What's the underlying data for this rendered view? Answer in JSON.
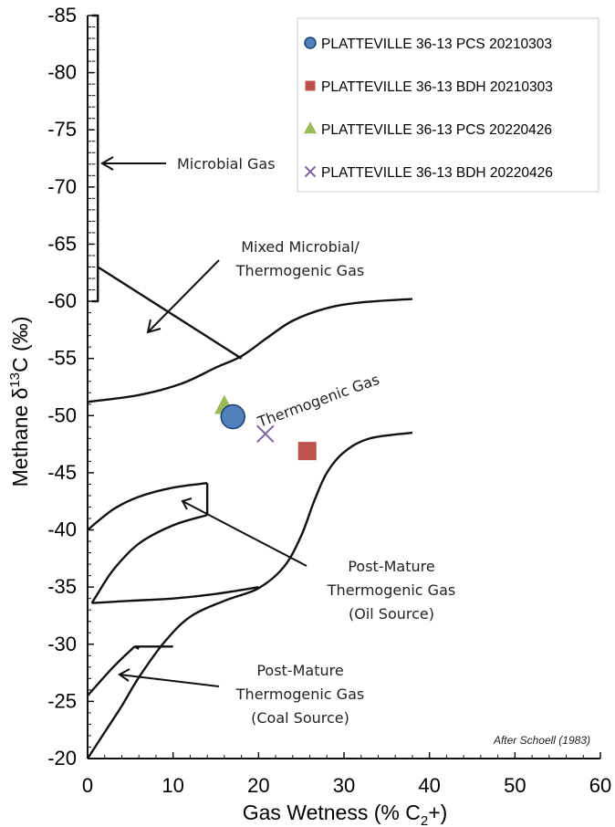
{
  "chart_data": {
    "type": "scatter",
    "xlabel": "Gas Wetness (% C",
    "xlabel_sub": "2",
    "xlabel_end": "+)",
    "ylabel_pre": "Methane  δ",
    "ylabel_sup": "13",
    "ylabel_post": "C (‰)",
    "xlim": [
      0,
      60
    ],
    "ylim": [
      -20,
      -85
    ],
    "x_ticks": [
      "0",
      "10",
      "20",
      "30",
      "40",
      "50",
      "60"
    ],
    "y_ticks": [
      "-20",
      "-25",
      "-30",
      "-35",
      "-40",
      "-45",
      "-50",
      "-55",
      "-60",
      "-65",
      "-70",
      "-75",
      "-80",
      "-85"
    ],
    "grid": false,
    "legend_position": "top-right",
    "series": [
      {
        "name": "PLATTEVILLE 36-13 PCS 20210303",
        "marker": "circle",
        "color": "#4f81bd",
        "points": [
          {
            "x": 17.0,
            "y": -49.9
          }
        ]
      },
      {
        "name": "PLATTEVILLE 36-13 BDH 20210303",
        "marker": "square",
        "color": "#c0504d",
        "points": [
          {
            "x": 25.7,
            "y": -46.9
          }
        ]
      },
      {
        "name": "PLATTEVILLE 36-13 PCS 20220426",
        "marker": "triangle",
        "color": "#9bbb59",
        "points": [
          {
            "x": 16.0,
            "y": -50.8
          }
        ]
      },
      {
        "name": "PLATTEVILLE 36-13 BDH 20220426",
        "marker": "x",
        "color": "#8064a2",
        "points": [
          {
            "x": 20.8,
            "y": -48.4
          }
        ]
      }
    ],
    "boundaries": [
      {
        "name": "microbial-box",
        "points": [
          [
            0.5,
            -60
          ],
          [
            1.2,
            -60
          ],
          [
            1.2,
            -85
          ],
          [
            0.5,
            -85
          ]
        ]
      },
      {
        "name": "mixed-zone-diagonal",
        "points": [
          [
            1.2,
            -63
          ],
          [
            18,
            -55
          ]
        ]
      },
      {
        "name": "thermogenic-upper-curve",
        "points": [
          [
            0,
            -51.2
          ],
          [
            6,
            -51.8
          ],
          [
            11,
            -52.8
          ],
          [
            15,
            -54.2
          ],
          [
            18,
            -55.2
          ],
          [
            21,
            -56.8
          ],
          [
            24,
            -58.3
          ],
          [
            28,
            -59.4
          ],
          [
            32,
            -59.9
          ],
          [
            38,
            -60.2
          ]
        ]
      },
      {
        "name": "thermogenic-lower-curve",
        "points": [
          [
            0,
            -20
          ],
          [
            2,
            -22.3
          ],
          [
            4,
            -24.6
          ],
          [
            6,
            -27.1
          ],
          [
            9,
            -30.2
          ],
          [
            12,
            -32.4
          ],
          [
            16,
            -33.8
          ],
          [
            20,
            -34.9
          ],
          [
            23,
            -36.8
          ],
          [
            25,
            -39.5
          ],
          [
            26.5,
            -42.5
          ],
          [
            28,
            -45
          ],
          [
            30,
            -46.8
          ],
          [
            33,
            -48
          ],
          [
            38,
            -48.5
          ]
        ]
      },
      {
        "name": "oil-source-box",
        "points": [
          [
            0,
            -40
          ],
          [
            3,
            -41.8
          ],
          [
            6,
            -42.9
          ],
          [
            10,
            -43.7
          ],
          [
            14,
            -44.1
          ],
          [
            14,
            -41.3
          ],
          [
            10,
            -40.4
          ],
          [
            6,
            -38.8
          ],
          [
            3,
            -36.5
          ],
          [
            1,
            -34.2
          ],
          [
            0.5,
            -33.6
          ],
          [
            5,
            -33.8
          ],
          [
            10,
            -34
          ],
          [
            15,
            -34.4
          ],
          [
            20,
            -35
          ]
        ]
      },
      {
        "name": "coal-source-box",
        "points": [
          [
            0,
            -25.5
          ],
          [
            3,
            -28
          ],
          [
            5.5,
            -29.8
          ],
          [
            10,
            -29.8
          ]
        ]
      },
      {
        "name": "coal-source-stub",
        "points": [
          [
            5.5,
            -29.8
          ],
          [
            6,
            -29.6
          ]
        ]
      }
    ],
    "annotations": [
      {
        "key": "microbial",
        "text": "Microbial Gas"
      },
      {
        "key": "mixed1",
        "text": "Mixed Microbial/"
      },
      {
        "key": "mixed2",
        "text": "Thermogenic Gas"
      },
      {
        "key": "thermo",
        "text": "Thermogenic Gas"
      },
      {
        "key": "oil1",
        "text": "Post-Mature"
      },
      {
        "key": "oil2",
        "text": "Thermogenic Gas"
      },
      {
        "key": "oil3",
        "text": "(Oil Source)"
      },
      {
        "key": "coal1",
        "text": "Post-Mature"
      },
      {
        "key": "coal2",
        "text": "Thermogenic Gas"
      },
      {
        "key": "coal3",
        "text": "(Coal Source)"
      }
    ],
    "credit": "After Schoell (1983)"
  }
}
